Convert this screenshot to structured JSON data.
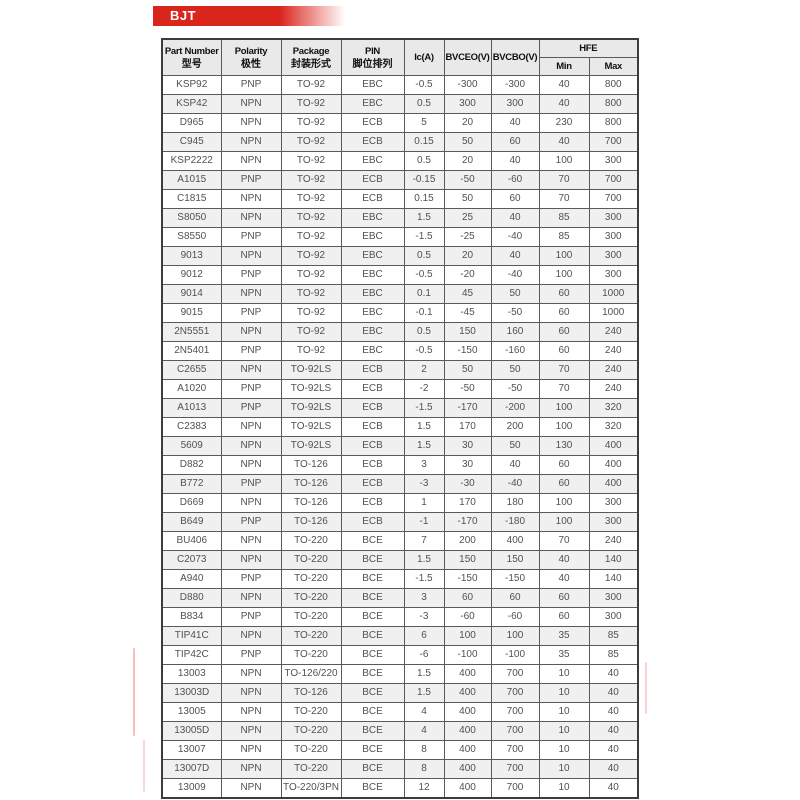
{
  "page_title": "BJT",
  "table": {
    "headers": {
      "part_number_en": "Part Number",
      "part_number_zh": "型号",
      "polarity_en": "Polarity",
      "polarity_zh": "极性",
      "package_en": "Package",
      "package_zh": "封装形式",
      "pin_en": "PIN",
      "pin_zh": "脚位排列",
      "ic": "Ic(A)",
      "bvceo": "BVCEO(V)",
      "bvcbo": "BVCBO(V)",
      "hfe": "HFE",
      "hfe_min": "Min",
      "hfe_max": "Max"
    },
    "rows": [
      {
        "part": "KSP92",
        "polarity": "PNP",
        "package": "TO-92",
        "pin": "EBC",
        "ic": "-0.5",
        "bvceo": "-300",
        "bvcbo": "-300",
        "hfe_min": "40",
        "hfe_max": "800"
      },
      {
        "part": "KSP42",
        "polarity": "NPN",
        "package": "TO-92",
        "pin": "EBC",
        "ic": "0.5",
        "bvceo": "300",
        "bvcbo": "300",
        "hfe_min": "40",
        "hfe_max": "800"
      },
      {
        "part": "D965",
        "polarity": "NPN",
        "package": "TO-92",
        "pin": "ECB",
        "ic": "5",
        "bvceo": "20",
        "bvcbo": "40",
        "hfe_min": "230",
        "hfe_max": "800"
      },
      {
        "part": "C945",
        "polarity": "NPN",
        "package": "TO-92",
        "pin": "ECB",
        "ic": "0.15",
        "bvceo": "50",
        "bvcbo": "60",
        "hfe_min": "40",
        "hfe_max": "700"
      },
      {
        "part": "KSP2222",
        "polarity": "NPN",
        "package": "TO-92",
        "pin": "EBC",
        "ic": "0.5",
        "bvceo": "20",
        "bvcbo": "40",
        "hfe_min": "100",
        "hfe_max": "300"
      },
      {
        "part": "A1015",
        "polarity": "PNP",
        "package": "TO-92",
        "pin": "ECB",
        "ic": "-0.15",
        "bvceo": "-50",
        "bvcbo": "-60",
        "hfe_min": "70",
        "hfe_max": "700"
      },
      {
        "part": "C1815",
        "polarity": "NPN",
        "package": "TO-92",
        "pin": "ECB",
        "ic": "0.15",
        "bvceo": "50",
        "bvcbo": "60",
        "hfe_min": "70",
        "hfe_max": "700"
      },
      {
        "part": "S8050",
        "polarity": "NPN",
        "package": "TO-92",
        "pin": "EBC",
        "ic": "1.5",
        "bvceo": "25",
        "bvcbo": "40",
        "hfe_min": "85",
        "hfe_max": "300"
      },
      {
        "part": "S8550",
        "polarity": "PNP",
        "package": "TO-92",
        "pin": "EBC",
        "ic": "-1.5",
        "bvceo": "-25",
        "bvcbo": "-40",
        "hfe_min": "85",
        "hfe_max": "300"
      },
      {
        "part": "9013",
        "polarity": "NPN",
        "package": "TO-92",
        "pin": "EBC",
        "ic": "0.5",
        "bvceo": "20",
        "bvcbo": "40",
        "hfe_min": "100",
        "hfe_max": "300"
      },
      {
        "part": "9012",
        "polarity": "PNP",
        "package": "TO-92",
        "pin": "EBC",
        "ic": "-0.5",
        "bvceo": "-20",
        "bvcbo": "-40",
        "hfe_min": "100",
        "hfe_max": "300"
      },
      {
        "part": "9014",
        "polarity": "NPN",
        "package": "TO-92",
        "pin": "EBC",
        "ic": "0.1",
        "bvceo": "45",
        "bvcbo": "50",
        "hfe_min": "60",
        "hfe_max": "1000"
      },
      {
        "part": "9015",
        "polarity": "PNP",
        "package": "TO-92",
        "pin": "EBC",
        "ic": "-0.1",
        "bvceo": "-45",
        "bvcbo": "-50",
        "hfe_min": "60",
        "hfe_max": "1000"
      },
      {
        "part": "2N5551",
        "polarity": "NPN",
        "package": "TO-92",
        "pin": "EBC",
        "ic": "0.5",
        "bvceo": "150",
        "bvcbo": "160",
        "hfe_min": "60",
        "hfe_max": "240"
      },
      {
        "part": "2N5401",
        "polarity": "PNP",
        "package": "TO-92",
        "pin": "EBC",
        "ic": "-0.5",
        "bvceo": "-150",
        "bvcbo": "-160",
        "hfe_min": "60",
        "hfe_max": "240"
      },
      {
        "part": "C2655",
        "polarity": "NPN",
        "package": "TO-92LS",
        "pin": "ECB",
        "ic": "2",
        "bvceo": "50",
        "bvcbo": "50",
        "hfe_min": "70",
        "hfe_max": "240"
      },
      {
        "part": "A1020",
        "polarity": "PNP",
        "package": "TO-92LS",
        "pin": "ECB",
        "ic": "-2",
        "bvceo": "-50",
        "bvcbo": "-50",
        "hfe_min": "70",
        "hfe_max": "240"
      },
      {
        "part": "A1013",
        "polarity": "PNP",
        "package": "TO-92LS",
        "pin": "ECB",
        "ic": "-1.5",
        "bvceo": "-170",
        "bvcbo": "-200",
        "hfe_min": "100",
        "hfe_max": "320"
      },
      {
        "part": "C2383",
        "polarity": "NPN",
        "package": "TO-92LS",
        "pin": "ECB",
        "ic": "1.5",
        "bvceo": "170",
        "bvcbo": "200",
        "hfe_min": "100",
        "hfe_max": "320"
      },
      {
        "part": "5609",
        "polarity": "NPN",
        "package": "TO-92LS",
        "pin": "ECB",
        "ic": "1.5",
        "bvceo": "30",
        "bvcbo": "50",
        "hfe_min": "130",
        "hfe_max": "400"
      },
      {
        "part": "D882",
        "polarity": "NPN",
        "package": "TO-126",
        "pin": "ECB",
        "ic": "3",
        "bvceo": "30",
        "bvcbo": "40",
        "hfe_min": "60",
        "hfe_max": "400"
      },
      {
        "part": "B772",
        "polarity": "PNP",
        "package": "TO-126",
        "pin": "ECB",
        "ic": "-3",
        "bvceo": "-30",
        "bvcbo": "-40",
        "hfe_min": "60",
        "hfe_max": "400"
      },
      {
        "part": "D669",
        "polarity": "NPN",
        "package": "TO-126",
        "pin": "ECB",
        "ic": "1",
        "bvceo": "170",
        "bvcbo": "180",
        "hfe_min": "100",
        "hfe_max": "300"
      },
      {
        "part": "B649",
        "polarity": "PNP",
        "package": "TO-126",
        "pin": "ECB",
        "ic": "-1",
        "bvceo": "-170",
        "bvcbo": "-180",
        "hfe_min": "100",
        "hfe_max": "300"
      },
      {
        "part": "BU406",
        "polarity": "NPN",
        "package": "TO-220",
        "pin": "BCE",
        "ic": "7",
        "bvceo": "200",
        "bvcbo": "400",
        "hfe_min": "70",
        "hfe_max": "240"
      },
      {
        "part": "C2073",
        "polarity": "NPN",
        "package": "TO-220",
        "pin": "BCE",
        "ic": "1.5",
        "bvceo": "150",
        "bvcbo": "150",
        "hfe_min": "40",
        "hfe_max": "140"
      },
      {
        "part": "A940",
        "polarity": "PNP",
        "package": "TO-220",
        "pin": "BCE",
        "ic": "-1.5",
        "bvceo": "-150",
        "bvcbo": "-150",
        "hfe_min": "40",
        "hfe_max": "140"
      },
      {
        "part": "D880",
        "polarity": "NPN",
        "package": "TO-220",
        "pin": "BCE",
        "ic": "3",
        "bvceo": "60",
        "bvcbo": "60",
        "hfe_min": "60",
        "hfe_max": "300"
      },
      {
        "part": "B834",
        "polarity": "PNP",
        "package": "TO-220",
        "pin": "BCE",
        "ic": "-3",
        "bvceo": "-60",
        "bvcbo": "-60",
        "hfe_min": "60",
        "hfe_max": "300"
      },
      {
        "part": "TIP41C",
        "polarity": "NPN",
        "package": "TO-220",
        "pin": "BCE",
        "ic": "6",
        "bvceo": "100",
        "bvcbo": "100",
        "hfe_min": "35",
        "hfe_max": "85"
      },
      {
        "part": "TIP42C",
        "polarity": "PNP",
        "package": "TO-220",
        "pin": "BCE",
        "ic": "-6",
        "bvceo": "-100",
        "bvcbo": "-100",
        "hfe_min": "35",
        "hfe_max": "85"
      },
      {
        "part": "13003",
        "polarity": "NPN",
        "package": "TO-126/220",
        "pin": "BCE",
        "ic": "1.5",
        "bvceo": "400",
        "bvcbo": "700",
        "hfe_min": "10",
        "hfe_max": "40"
      },
      {
        "part": "13003D",
        "polarity": "NPN",
        "package": "TO-126",
        "pin": "BCE",
        "ic": "1.5",
        "bvceo": "400",
        "bvcbo": "700",
        "hfe_min": "10",
        "hfe_max": "40"
      },
      {
        "part": "13005",
        "polarity": "NPN",
        "package": "TO-220",
        "pin": "BCE",
        "ic": "4",
        "bvceo": "400",
        "bvcbo": "700",
        "hfe_min": "10",
        "hfe_max": "40"
      },
      {
        "part": "13005D",
        "polarity": "NPN",
        "package": "TO-220",
        "pin": "BCE",
        "ic": "4",
        "bvceo": "400",
        "bvcbo": "700",
        "hfe_min": "10",
        "hfe_max": "40"
      },
      {
        "part": "13007",
        "polarity": "NPN",
        "package": "TO-220",
        "pin": "BCE",
        "ic": "8",
        "bvceo": "400",
        "bvcbo": "700",
        "hfe_min": "10",
        "hfe_max": "40"
      },
      {
        "part": "13007D",
        "polarity": "NPN",
        "package": "TO-220",
        "pin": "BCE",
        "ic": "8",
        "bvceo": "400",
        "bvcbo": "700",
        "hfe_min": "10",
        "hfe_max": "40"
      },
      {
        "part": "13009",
        "polarity": "NPN",
        "package": "TO-220/3PN",
        "pin": "BCE",
        "ic": "12",
        "bvceo": "400",
        "bvcbo": "700",
        "hfe_min": "10",
        "hfe_max": "40"
      }
    ]
  },
  "colors": {
    "banner_red": "#da251d",
    "header_bg": "#e9e9e9",
    "stripe_bg": "#f0f0f1",
    "border": "#5a5a5a"
  }
}
